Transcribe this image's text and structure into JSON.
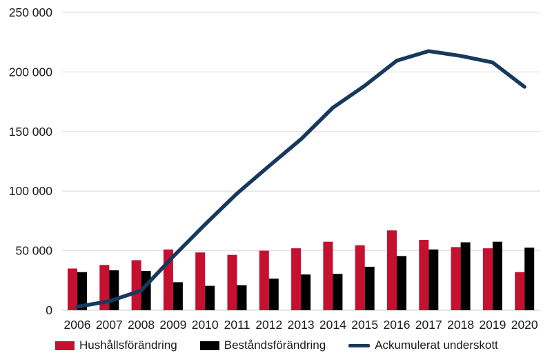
{
  "chart_data": {
    "type": "combo-bar-line",
    "title": "",
    "xlabel": "",
    "ylabel": "",
    "categories": [
      "2006",
      "2007",
      "2008",
      "2009",
      "2010",
      "2011",
      "2012",
      "2013",
      "2014",
      "2015",
      "2016",
      "2017",
      "2018",
      "2019",
      "2020"
    ],
    "series": [
      {
        "name": "Hushållsförändring",
        "type": "bar",
        "color": "#c51030",
        "values": [
          35000,
          38000,
          42000,
          51000,
          48500,
          46500,
          50000,
          52000,
          57500,
          54500,
          67000,
          59000,
          53000,
          52000,
          32000
        ]
      },
      {
        "name": "Beståndsförändring",
        "type": "bar",
        "color": "#000000",
        "values": [
          32000,
          33500,
          33000,
          23500,
          20500,
          21000,
          26500,
          30000,
          30500,
          36500,
          45500,
          51000,
          57000,
          57500,
          52500
        ]
      },
      {
        "name": "Ackumulerat underskott",
        "type": "line",
        "color": "#17395e",
        "values": [
          3000,
          7500,
          16500,
          45000,
          72000,
          98000,
          121000,
          143500,
          170000,
          188500,
          209500,
          217500,
          213500,
          208000,
          187500
        ]
      }
    ],
    "ylim": [
      0,
      250000
    ],
    "ytick_interval": 50000,
    "ytick_labels": [
      "0",
      "50 000",
      "100 000",
      "150 000",
      "200 000",
      "250 000"
    ],
    "grid": true,
    "gridline_color": "#e2e2e2",
    "axisline_color": "#d6d6d6",
    "text_color": "#1a1a1a",
    "legend_position": "bottom"
  }
}
